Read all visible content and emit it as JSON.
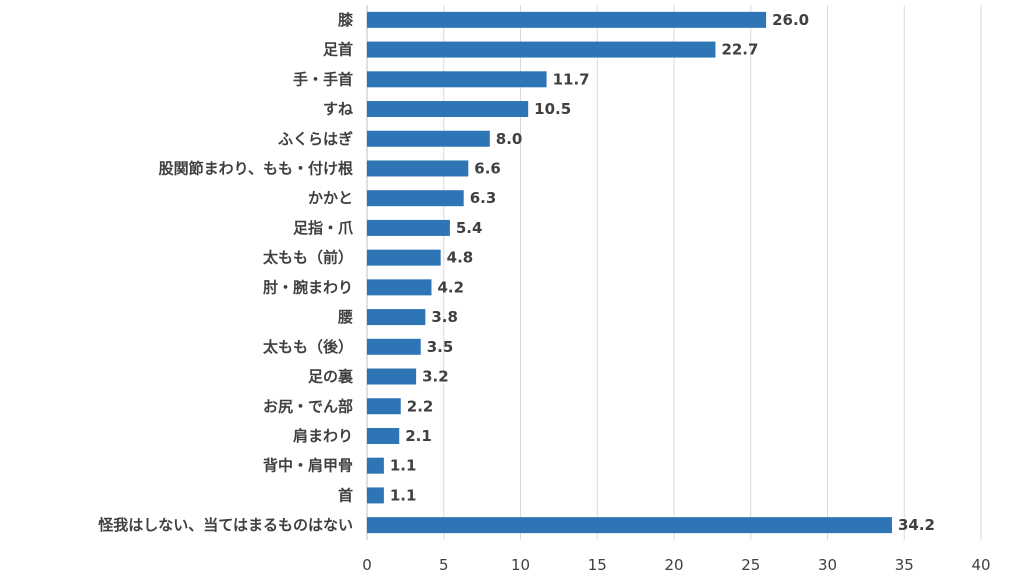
{
  "chart_data": {
    "type": "bar",
    "orientation": "horizontal",
    "categories": [
      "膝",
      "足首",
      "手・手首",
      "すね",
      "ふくらはぎ",
      "股関節まわり、もも・付け根",
      "かかと",
      "足指・爪",
      "太もも（前）",
      "肘・腕まわり",
      "腰",
      "太もも（後）",
      "足の裏",
      "お尻・でん部",
      "肩まわり",
      "背中・肩甲骨",
      "首",
      "怪我はしない、当てはまるものはない"
    ],
    "values": [
      26.0,
      22.7,
      11.7,
      10.5,
      8.0,
      6.6,
      6.3,
      5.4,
      4.8,
      4.2,
      3.8,
      3.5,
      3.2,
      2.2,
      2.1,
      1.1,
      1.1,
      34.2
    ],
    "value_labels": [
      "26.0",
      "22.7",
      "11.7",
      "10.5",
      "8.0",
      "6.6",
      "6.3",
      "5.4",
      "4.8",
      "4.2",
      "3.8",
      "3.5",
      "3.2",
      "2.2",
      "2.1",
      "1.1",
      "1.1",
      "34.2"
    ],
    "x_ticks": [
      "0",
      "5",
      "10",
      "15",
      "20",
      "25",
      "30",
      "35",
      "40"
    ],
    "xlim": [
      0,
      40
    ],
    "grid": true,
    "bar_color": "#2e75b6",
    "title": "",
    "xlabel": "",
    "ylabel": ""
  }
}
